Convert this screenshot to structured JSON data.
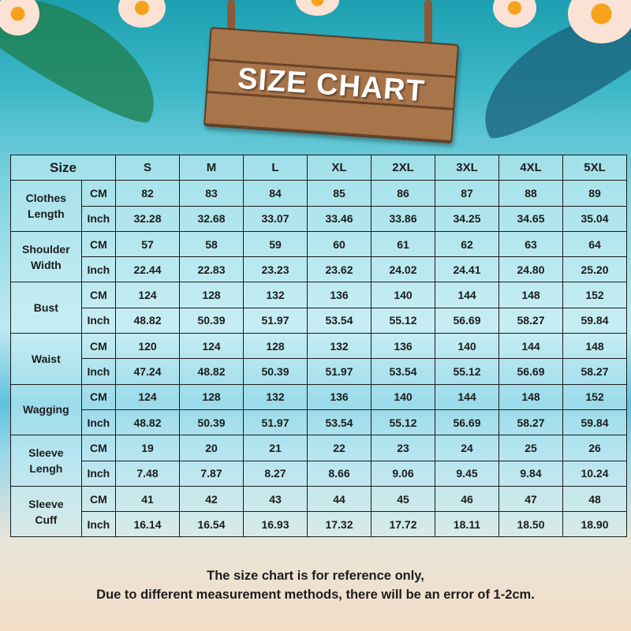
{
  "title": "SIZE CHART",
  "table": {
    "size_header": "Size",
    "sizes": [
      "S",
      "M",
      "L",
      "XL",
      "2XL",
      "3XL",
      "4XL",
      "5XL"
    ],
    "rows": [
      {
        "label": "Clothes Length",
        "cm": [
          "82",
          "83",
          "84",
          "85",
          "86",
          "87",
          "88",
          "89"
        ],
        "inch": [
          "32.28",
          "32.68",
          "33.07",
          "33.46",
          "33.86",
          "34.25",
          "34.65",
          "35.04"
        ]
      },
      {
        "label": "Shoulder Width",
        "cm": [
          "57",
          "58",
          "59",
          "60",
          "61",
          "62",
          "63",
          "64"
        ],
        "inch": [
          "22.44",
          "22.83",
          "23.23",
          "23.62",
          "24.02",
          "24.41",
          "24.80",
          "25.20"
        ]
      },
      {
        "label": "Bust",
        "cm": [
          "124",
          "128",
          "132",
          "136",
          "140",
          "144",
          "148",
          "152"
        ],
        "inch": [
          "48.82",
          "50.39",
          "51.97",
          "53.54",
          "55.12",
          "56.69",
          "58.27",
          "59.84"
        ]
      },
      {
        "label": "Waist",
        "cm": [
          "120",
          "124",
          "128",
          "132",
          "136",
          "140",
          "144",
          "148"
        ],
        "inch": [
          "47.24",
          "48.82",
          "50.39",
          "51.97",
          "53.54",
          "55.12",
          "56.69",
          "58.27"
        ]
      },
      {
        "label": "Wagging",
        "cm": [
          "124",
          "128",
          "132",
          "136",
          "140",
          "144",
          "148",
          "152"
        ],
        "inch": [
          "48.82",
          "50.39",
          "51.97",
          "53.54",
          "55.12",
          "56.69",
          "58.27",
          "59.84"
        ]
      },
      {
        "label": "Sleeve Lengh",
        "cm": [
          "19",
          "20",
          "21",
          "22",
          "23",
          "24",
          "25",
          "26"
        ],
        "inch": [
          "7.48",
          "7.87",
          "8.27",
          "8.66",
          "9.06",
          "9.45",
          "9.84",
          "10.24"
        ]
      },
      {
        "label": "Sleeve Cuff",
        "cm": [
          "41",
          "42",
          "43",
          "44",
          "45",
          "46",
          "47",
          "48"
        ],
        "inch": [
          "16.14",
          "16.54",
          "16.93",
          "17.32",
          "17.72",
          "18.11",
          "18.50",
          "18.90"
        ]
      }
    ],
    "unit_cm": "CM",
    "unit_inch": "Inch"
  },
  "footer": {
    "line1": "The size chart is for reference only,",
    "line2": "Due to different measurement methods, there will be an error of 1-2cm."
  }
}
